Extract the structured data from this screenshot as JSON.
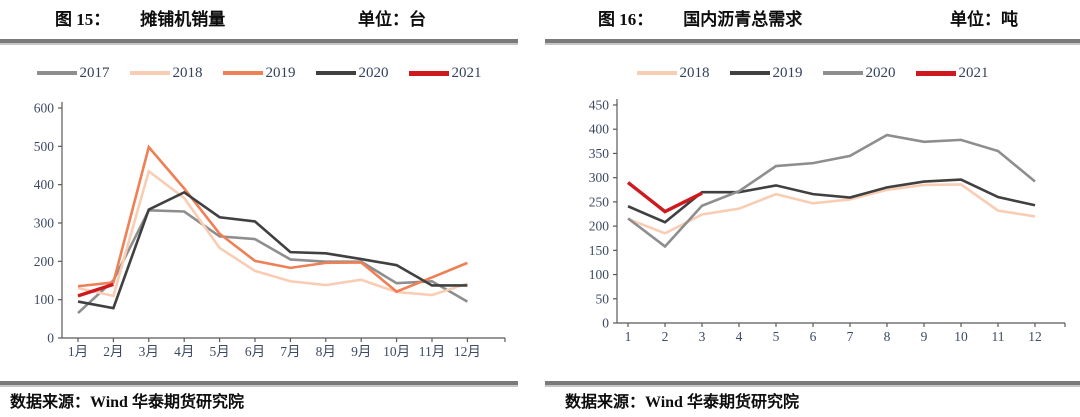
{
  "chart_data": [
    {
      "type": "line",
      "figure_label": "图 15：",
      "title": "摊铺机销量",
      "unit": "单位：台",
      "source": "数据来源：Wind  华泰期货研究院",
      "legend_position": "top",
      "grid": false,
      "xlabel": "",
      "ylabel": "",
      "ylim": [
        0,
        600
      ],
      "ytick_step": 100,
      "categories": [
        "1月",
        "2月",
        "3月",
        "4月",
        "5月",
        "6月",
        "7月",
        "8月",
        "9月",
        "10月",
        "11月",
        "12月"
      ],
      "series": [
        {
          "name": "2017",
          "color": "#8e8e8e",
          "width": 2.6,
          "values": [
            65,
            150,
            333,
            330,
            265,
            258,
            205,
            199,
            199,
            143,
            148,
            95
          ]
        },
        {
          "name": "2018",
          "color": "#f9cdb4",
          "width": 2.6,
          "values": [
            130,
            110,
            435,
            365,
            235,
            175,
            148,
            138,
            152,
            120,
            112,
            142
          ]
        },
        {
          "name": "2019",
          "color": "#ef7f55",
          "width": 2.6,
          "values": [
            135,
            145,
            498,
            390,
            272,
            201,
            183,
            196,
            197,
            121,
            158,
            196
          ]
        },
        {
          "name": "2020",
          "color": "#404040",
          "width": 2.6,
          "values": [
            95,
            78,
            335,
            380,
            315,
            304,
            224,
            221,
            206,
            190,
            137,
            137
          ]
        },
        {
          "name": "2021",
          "color": "#cd1a1e",
          "width": 3.4,
          "values": [
            110,
            140,
            null,
            null,
            null,
            null,
            null,
            null,
            null,
            null,
            null,
            null
          ]
        }
      ]
    },
    {
      "type": "line",
      "figure_label": "图 16：",
      "title": "国内沥青总需求",
      "unit": "单位：吨",
      "source": "数据来源：Wind  华泰期货研究院",
      "legend_position": "top",
      "grid": false,
      "xlabel": "",
      "ylabel": "",
      "ylim": [
        0,
        450
      ],
      "ytick_step": 50,
      "categories": [
        "1",
        "2",
        "3",
        "4",
        "5",
        "6",
        "7",
        "8",
        "9",
        "10",
        "11",
        "12"
      ],
      "series": [
        {
          "name": "2018",
          "color": "#f9cdb4",
          "width": 2.6,
          "values": [
            215,
            185,
            224,
            236,
            266,
            247,
            255,
            275,
            285,
            286,
            232,
            220
          ]
        },
        {
          "name": "2019",
          "color": "#404040",
          "width": 2.6,
          "values": [
            241,
            208,
            270,
            270,
            284,
            266,
            259,
            280,
            292,
            296,
            260,
            243
          ]
        },
        {
          "name": "2020",
          "color": "#8e8e8e",
          "width": 2.6,
          "values": [
            216,
            158,
            242,
            272,
            324,
            330,
            345,
            388,
            374,
            378,
            355,
            292
          ]
        },
        {
          "name": "2021",
          "color": "#cd1a1e",
          "width": 3.4,
          "values": [
            290,
            230,
            268,
            null,
            null,
            null,
            null,
            null,
            null,
            null,
            null,
            null
          ]
        }
      ]
    }
  ]
}
